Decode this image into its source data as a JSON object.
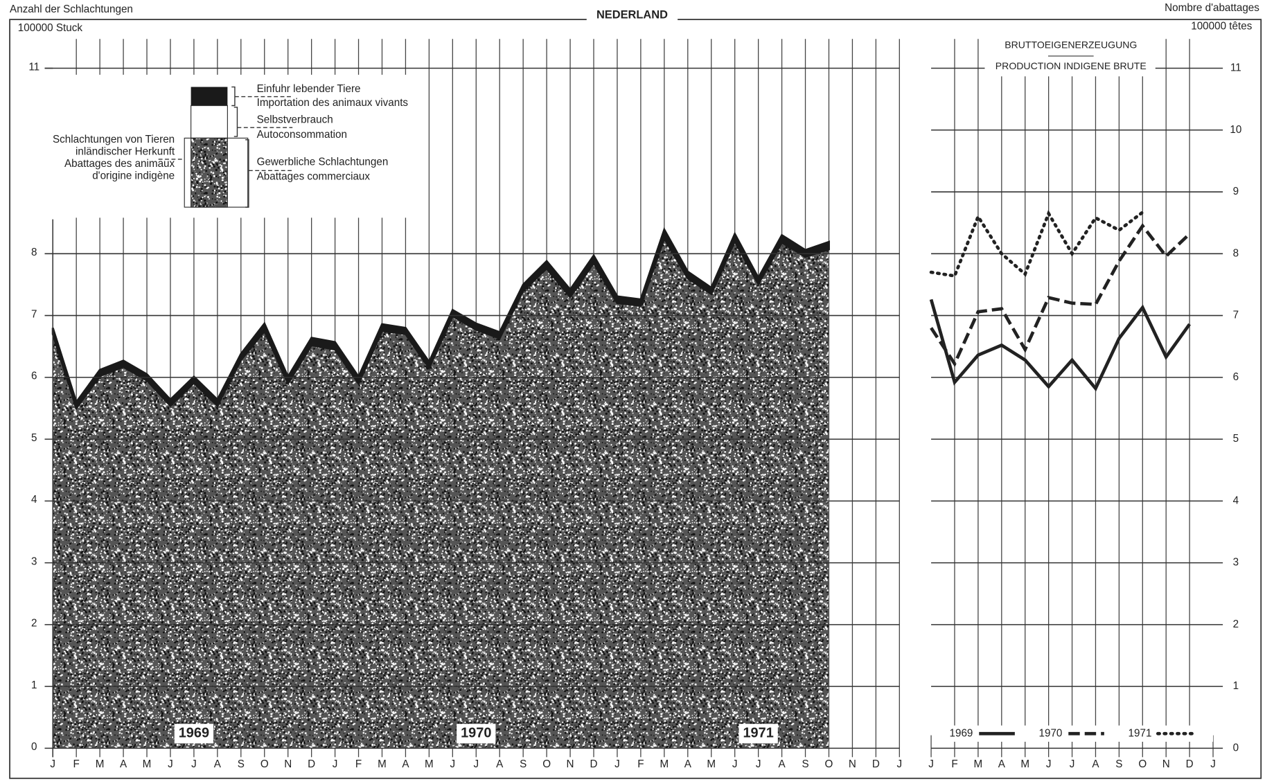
{
  "header": {
    "left": "Anzahl der Schlachtungen",
    "right": "Nombre d'abattages"
  },
  "chart_data": [
    {
      "type": "area",
      "title": "NEDERLAND",
      "y_unit": "100000 Stuck",
      "categories": [
        "J",
        "F",
        "M",
        "A",
        "M",
        "J",
        "J",
        "A",
        "S",
        "O",
        "N",
        "D",
        "J",
        "F",
        "M",
        "A",
        "M",
        "J",
        "J",
        "A",
        "S",
        "O",
        "N",
        "D",
        "J",
        "F",
        "M",
        "A",
        "M",
        "J",
        "J",
        "A",
        "S",
        "O",
        "N",
        "D",
        "J"
      ],
      "series": [
        {
          "name": "Gewerbliche Schlachtungen",
          "name_fr": "Abattages commerciaux",
          "color": "#5a5a5a",
          "values": [
            6.7,
            5.5,
            6.02,
            6.17,
            5.95,
            5.54,
            5.91,
            5.54,
            6.28,
            6.75,
            5.9,
            6.52,
            6.45,
            5.9,
            6.75,
            6.7,
            6.15,
            6.99,
            6.77,
            6.63,
            7.4,
            7.76,
            7.3,
            7.85,
            7.2,
            7.16,
            8.25,
            7.6,
            7.35,
            8.2,
            7.51,
            8.18,
            7.95,
            8.07,
            null,
            null,
            null
          ]
        },
        {
          "name": "Einfuhr lebender Tiere",
          "name_fr": "Importation des animaux vivants",
          "color": "#1a1a1a",
          "values": [
            0.1,
            0.1,
            0.1,
            0.1,
            0.1,
            0.1,
            0.1,
            0.1,
            0.1,
            0.12,
            0.11,
            0.12,
            0.12,
            0.11,
            0.11,
            0.1,
            0.1,
            0.1,
            0.1,
            0.1,
            0.1,
            0.12,
            0.12,
            0.12,
            0.11,
            0.1,
            0.14,
            0.11,
            0.1,
            0.12,
            0.1,
            0.12,
            0.11,
            0.12,
            null,
            null,
            null
          ]
        }
      ],
      "legend": {
        "self": "Selbstverbrauch",
        "self_fr": "Autoconsommation",
        "group": [
          "Schlachtungen von Tieren",
          "inländischer Herkunft",
          "Abattages des animaux",
          "d'origine indigène"
        ]
      },
      "year_labels": [
        "1969",
        "1970",
        "1971"
      ],
      "ylim": [
        0,
        11
      ],
      "yticks": [
        0,
        1,
        2,
        3,
        4,
        5,
        6,
        7,
        8,
        11
      ],
      "grid": true
    },
    {
      "type": "line",
      "title": "BRUTTOEIGENERZEUGUNG",
      "subtitle": "PRODUCTION INDIGENE BRUTE",
      "y2_unit": "100000 têtes",
      "categories": [
        "J",
        "F",
        "M",
        "A",
        "M",
        "J",
        "J",
        "A",
        "S",
        "O",
        "N",
        "D",
        "J"
      ],
      "series": [
        {
          "name": "1969",
          "color": "#222222",
          "dash": "solid",
          "axis": "y2",
          "values": [
            7.26,
            5.92,
            6.36,
            6.52,
            6.28,
            5.85,
            6.28,
            5.82,
            6.63,
            7.13,
            6.33,
            6.86,
            null
          ]
        },
        {
          "name": "1970",
          "color": "#222222",
          "dash": "dashed",
          "axis": "y2",
          "values": [
            6.8,
            6.22,
            7.06,
            7.11,
            6.45,
            7.29,
            7.2,
            7.18,
            7.88,
            8.45,
            7.96,
            8.32,
            null
          ]
        },
        {
          "name": "1971",
          "color": "#222222",
          "dash": "dotted",
          "axis": "y2",
          "values": [
            7.7,
            7.64,
            8.6,
            8.0,
            7.67,
            8.65,
            8.0,
            8.58,
            8.38,
            8.67,
            null,
            null,
            null
          ]
        }
      ],
      "y2lim": [
        0,
        11
      ],
      "y2ticks": [
        0,
        1,
        2,
        3,
        4,
        5,
        6,
        7,
        8,
        9,
        10,
        11
      ],
      "grid": true
    }
  ]
}
